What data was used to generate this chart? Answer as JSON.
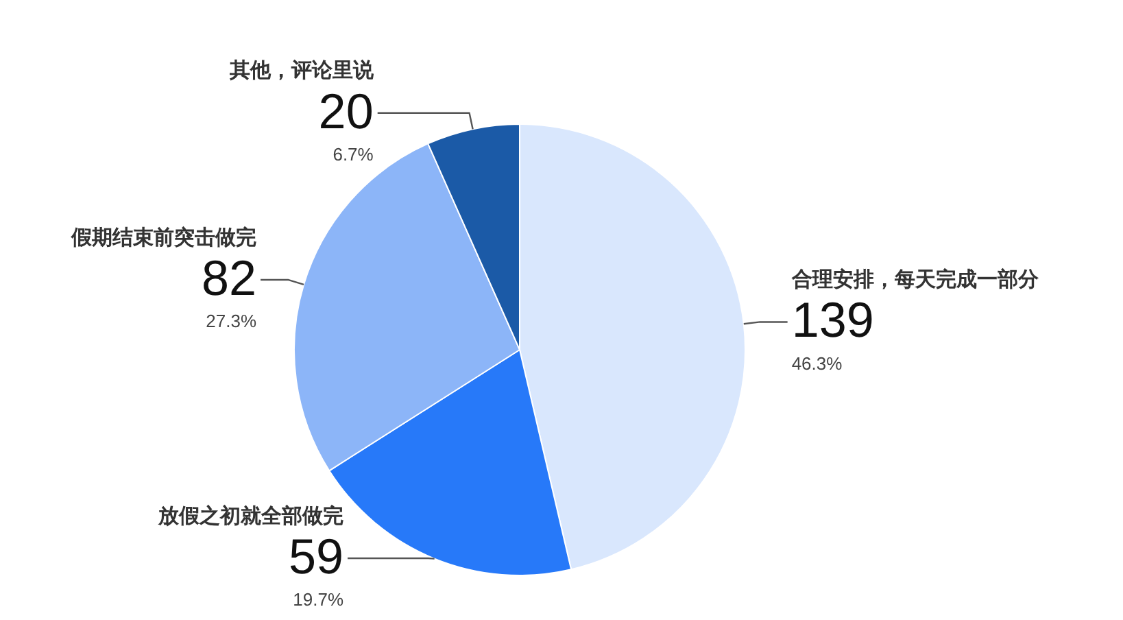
{
  "chart_data": {
    "type": "pie",
    "categories": [
      "合理安排，每天完成一部分",
      "放假之初就全部做完",
      "假期结束前突击做完",
      "其他，评论里说"
    ],
    "values": [
      139,
      59,
      82,
      20
    ],
    "colors": [
      "#d9e7fd",
      "#2779f9",
      "#8cb5f8",
      "#1b5aa7"
    ],
    "data_labels": true,
    "annotations": [
      "46.3%",
      "19.7%",
      "27.3%",
      "6.7%"
    ]
  }
}
